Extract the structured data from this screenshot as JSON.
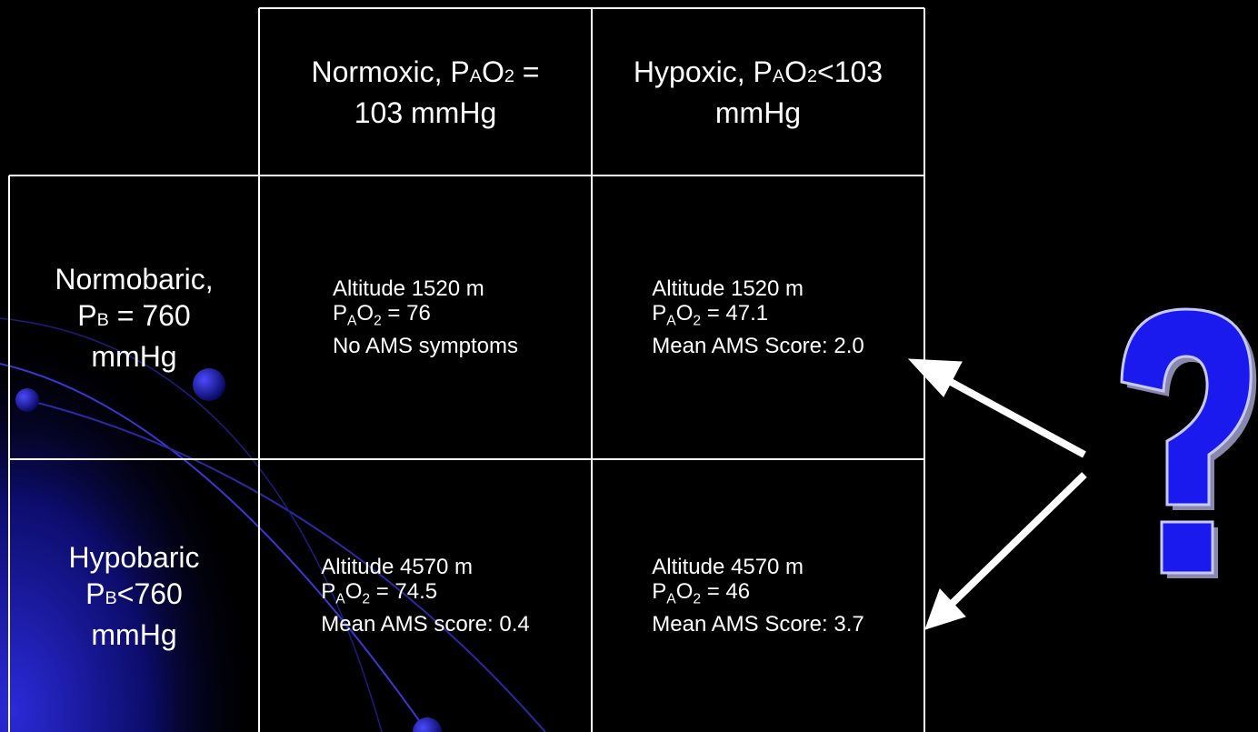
{
  "table": {
    "columns": [
      [
        [
          {
            "text": "Normoxic, P"
          },
          {
            "text": "A",
            "small": true
          },
          {
            "text": "O"
          },
          {
            "text": "2",
            "small": true
          },
          {
            "text": " ="
          }
        ],
        [
          {
            "text": "103 mmHg"
          }
        ]
      ],
      [
        [
          {
            "text": "Hypoxic, P"
          },
          {
            "text": "A",
            "small": true
          },
          {
            "text": "O"
          },
          {
            "text": "2",
            "small": true
          },
          {
            "text": "<103"
          }
        ],
        [
          {
            "text": "mmHg"
          }
        ]
      ]
    ],
    "rows": [
      {
        "header": [
          [
            {
              "text": "Normobaric,"
            }
          ],
          [
            {
              "text": "P"
            },
            {
              "text": "B",
              "small": true
            },
            {
              "text": " = 760"
            }
          ],
          [
            {
              "text": "mmHg"
            }
          ]
        ],
        "cells": [
          [
            [
              {
                "text": "Altitude 1520 m"
              }
            ],
            [
              {
                "text": "P"
              },
              {
                "text": "A",
                "sub": true
              },
              {
                "text": "O"
              },
              {
                "text": "2",
                "sub": true
              },
              {
                "text": " = 76"
              }
            ],
            [
              {
                "text": "No AMS symptoms"
              }
            ]
          ],
          [
            [
              {
                "text": "Altitude 1520 m"
              }
            ],
            [
              {
                "text": "P"
              },
              {
                "text": "A",
                "sub": true
              },
              {
                "text": "O"
              },
              {
                "text": "2",
                "sub": true
              },
              {
                "text": " = 47.1"
              }
            ],
            [
              {
                "text": "Mean AMS Score: 2.0"
              }
            ]
          ]
        ]
      },
      {
        "header": [
          [
            {
              "text": "Hypobaric"
            }
          ],
          [
            {
              "text": "P"
            },
            {
              "text": "B",
              "small": true
            },
            {
              "text": "<760"
            }
          ],
          [
            {
              "text": "mmHg"
            }
          ]
        ],
        "cells": [
          [
            [
              {
                "text": "Altitude 4570 m"
              }
            ],
            [
              {
                "text": "P"
              },
              {
                "text": "A",
                "sub": true
              },
              {
                "text": "O"
              },
              {
                "text": "2",
                "sub": true
              },
              {
                "text": " = 74.5"
              }
            ],
            [
              {
                "text": "Mean AMS score: 0.4"
              }
            ]
          ],
          [
            [
              {
                "text": "Altitude 4570 m"
              }
            ],
            [
              {
                "text": "P"
              },
              {
                "text": "A",
                "sub": true
              },
              {
                "text": "O"
              },
              {
                "text": "2",
                "sub": true
              },
              {
                "text": " = 46"
              }
            ],
            [
              {
                "text": "Mean AMS Score: 3.7"
              }
            ]
          ]
        ]
      }
    ]
  }
}
